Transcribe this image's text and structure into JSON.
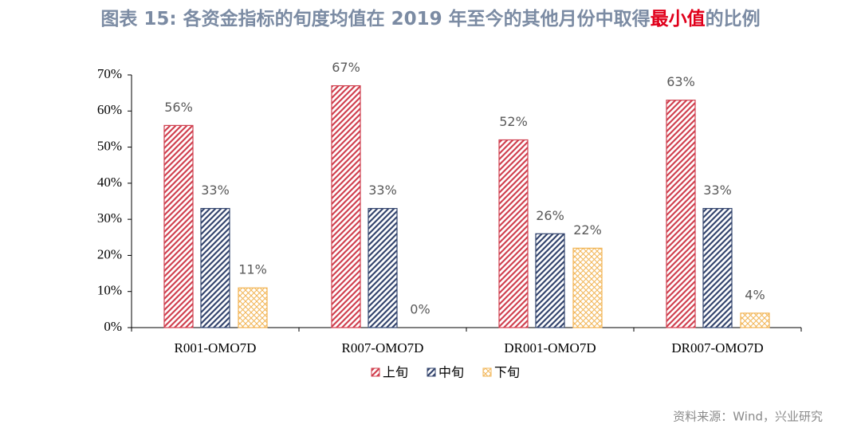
{
  "chart_data": {
    "type": "bar",
    "title": [
      "图表 15: 各资金指标的旬度均值在 2019 年至今的其他月份中取得",
      "最小值",
      "的比例"
    ],
    "title_colors": [
      "#7b8ba3",
      "#e0001b",
      "#7b8ba3"
    ],
    "source": "资料来源：Wind，兴业研究",
    "categories": [
      "R001-OMO7D",
      "R007-OMO7D",
      "DR001-OMO7D",
      "DR007-OMO7D"
    ],
    "series": [
      {
        "name": "上旬",
        "color": "#d0404f",
        "hatch": "diagonal",
        "values": [
          56,
          67,
          52,
          63
        ],
        "value_labels": [
          "56%",
          "67%",
          "52%",
          "63%"
        ]
      },
      {
        "name": "中旬",
        "color": "#34456e",
        "hatch": "diagonal",
        "values": [
          33,
          33,
          26,
          33
        ],
        "value_labels": [
          "33%",
          "33%",
          "26%",
          "33%"
        ]
      },
      {
        "name": "下旬",
        "color": "#f2b555",
        "hatch": "cross",
        "values": [
          11,
          0,
          22,
          4
        ],
        "value_labels": [
          "11%",
          "0%",
          "22%",
          "4%"
        ]
      }
    ],
    "ylim": [
      0,
      70
    ],
    "yticks": [
      {
        "value": 0,
        "label": "0%"
      },
      {
        "value": 10,
        "label": "10%"
      },
      {
        "value": 20,
        "label": "20%"
      },
      {
        "value": 30,
        "label": "30%"
      },
      {
        "value": 40,
        "label": "40%"
      },
      {
        "value": 50,
        "label": "50%"
      },
      {
        "value": 60,
        "label": "60%"
      },
      {
        "value": 70,
        "label": "70%"
      }
    ],
    "legend": "bottom"
  }
}
